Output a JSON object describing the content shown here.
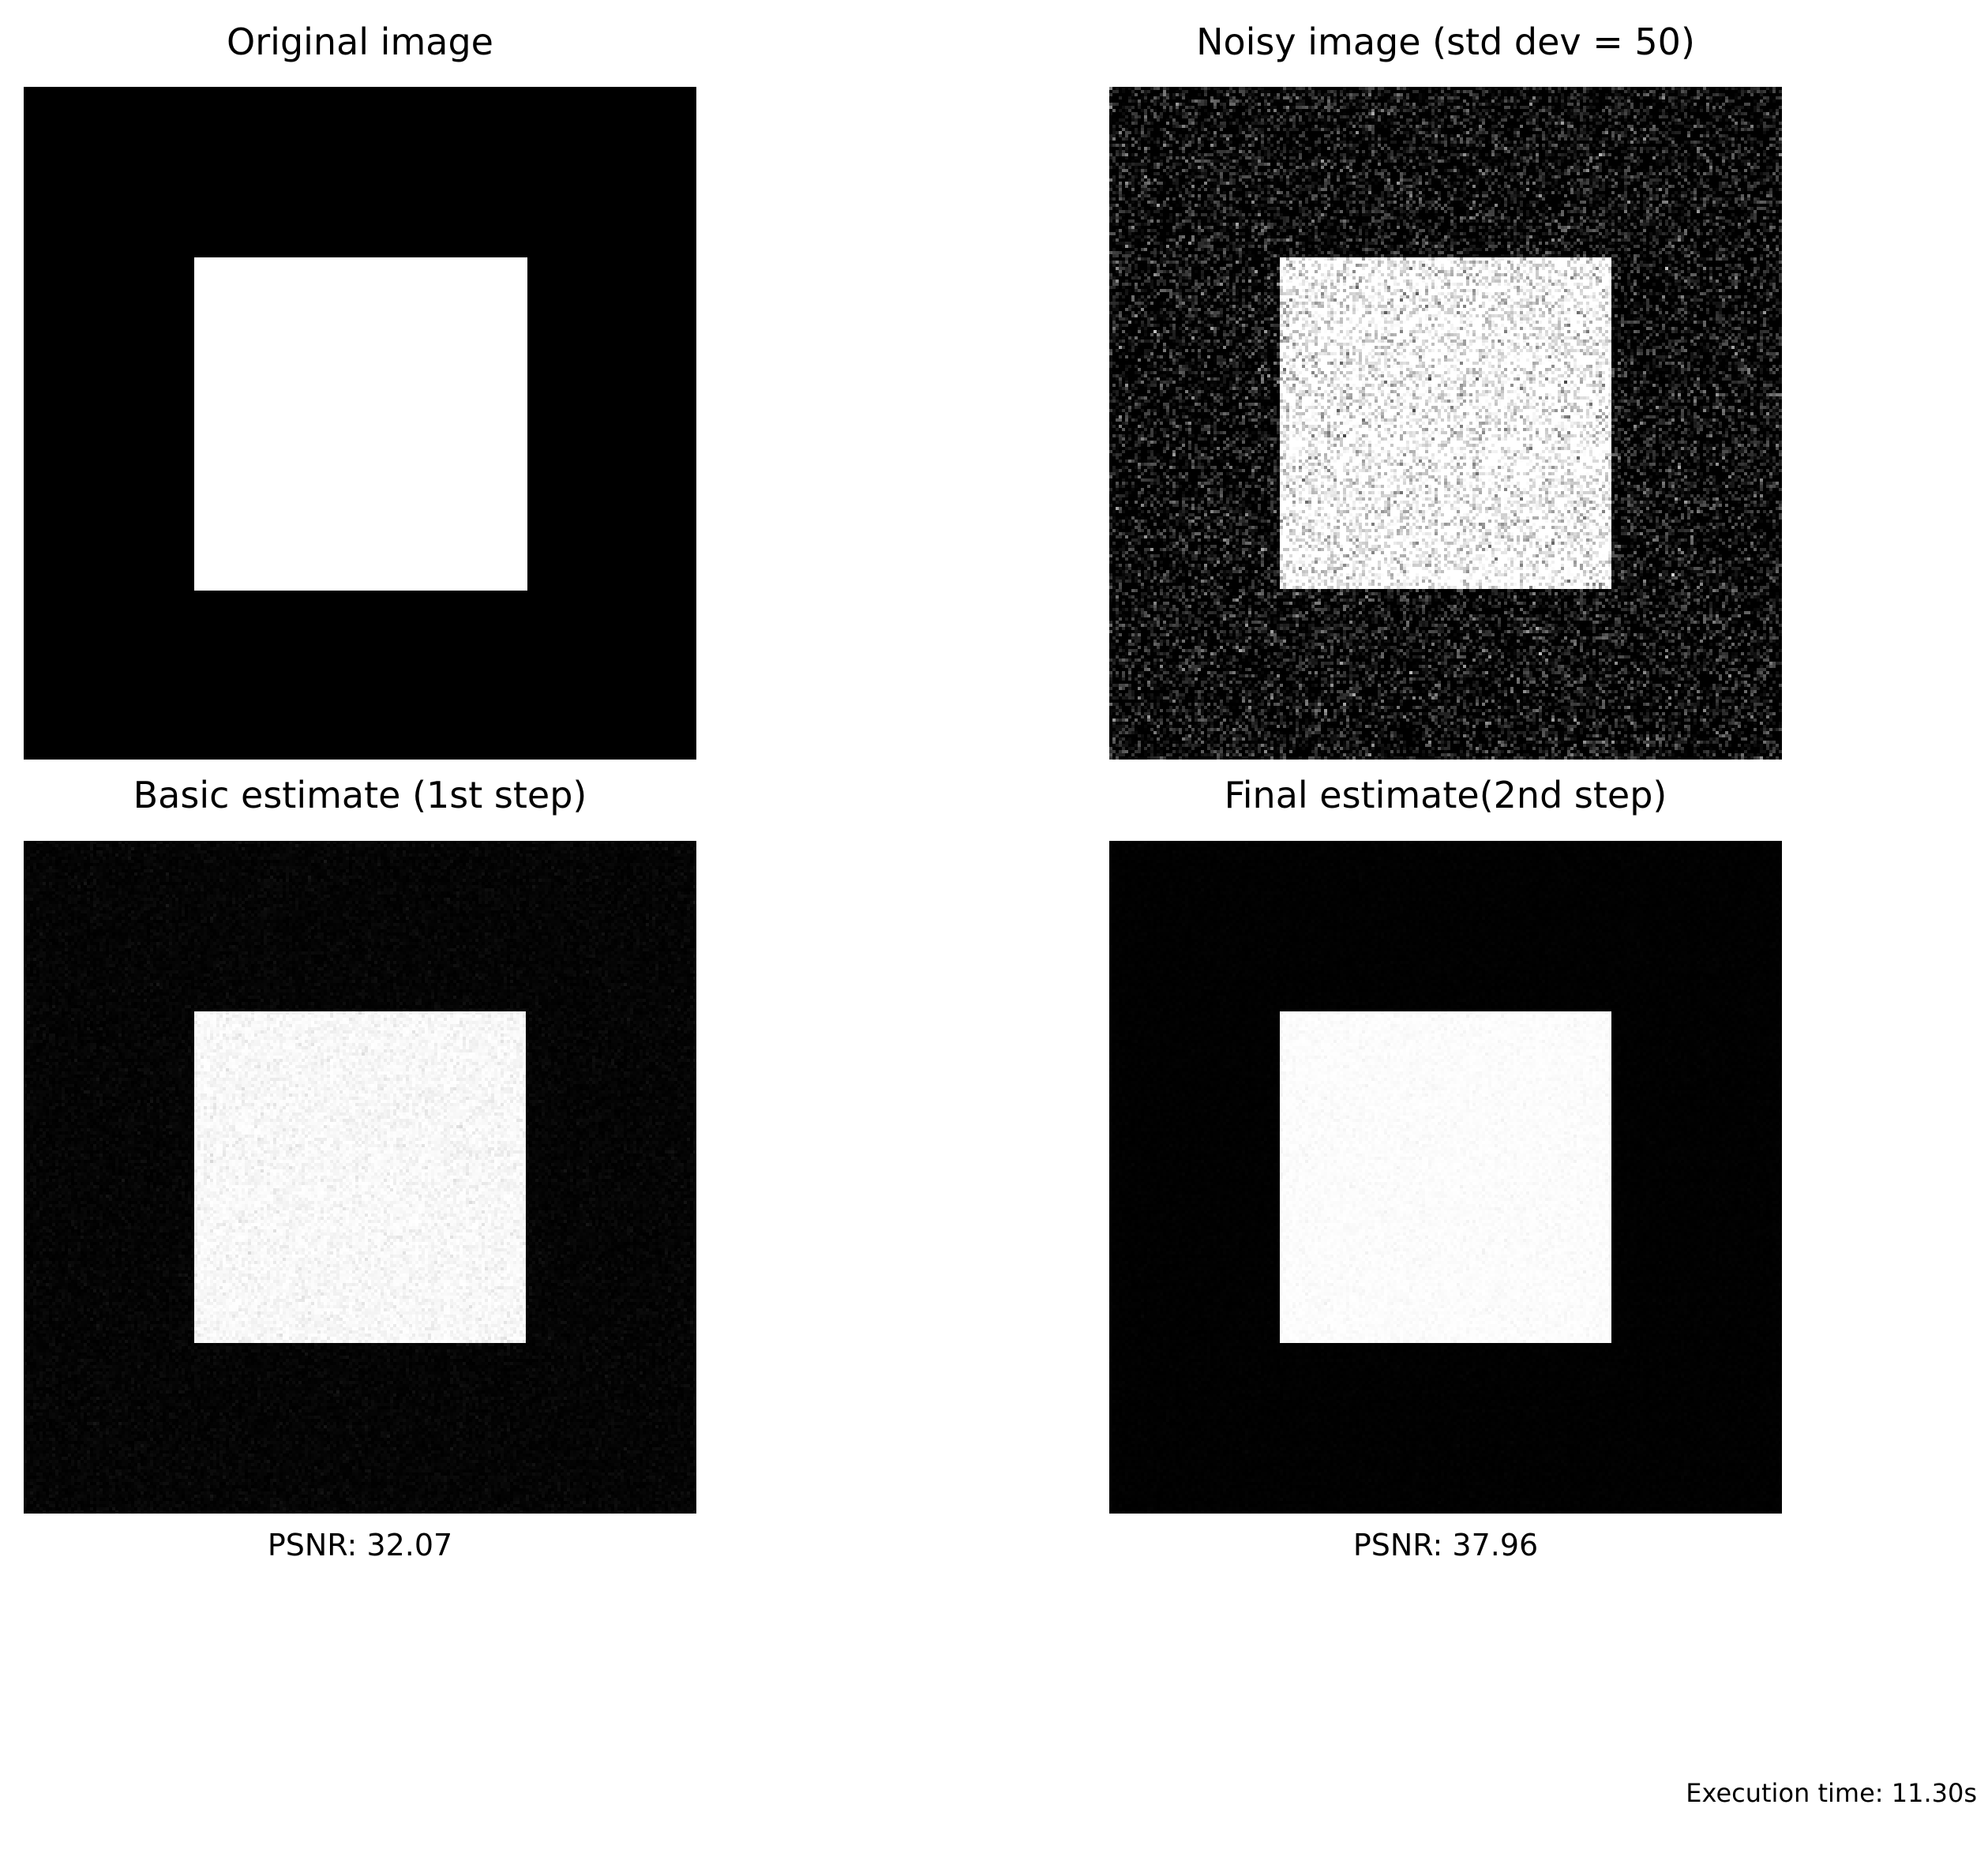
{
  "panels": [
    {
      "title": "Original image",
      "noise": "none"
    },
    {
      "title": "Noisy image (std dev = 50)",
      "noise": "heavy"
    },
    {
      "title": "Basic estimate (1st step)",
      "noise": "light"
    },
    {
      "title": "Final estimate(2nd step)",
      "noise": "minimal"
    }
  ],
  "captions": {
    "basic": "PSNR: 32.07",
    "final": "PSNR: 37.96"
  },
  "footer": {
    "execution_time": "Execution time: 11.30s"
  }
}
